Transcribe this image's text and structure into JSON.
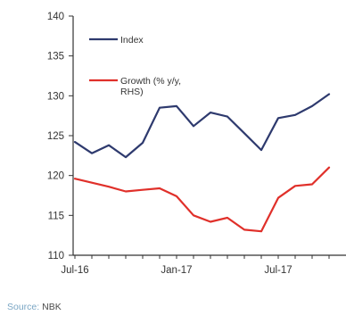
{
  "chart_data": {
    "type": "line",
    "title": "",
    "xlabel": "",
    "ylabel": "",
    "ylim": [
      110,
      140
    ],
    "y_ticks": [
      110,
      115,
      120,
      125,
      130,
      135,
      140
    ],
    "x_tick_labels": [
      "Jul-16",
      "Jan-17",
      "Jul-17"
    ],
    "x": [
      "Jul-16",
      "Aug-16",
      "Sep-16",
      "Oct-16",
      "Nov-16",
      "Dec-16",
      "Jan-17",
      "Feb-17",
      "Mar-17",
      "Apr-17",
      "May-17",
      "Jun-17",
      "Jul-17",
      "Aug-17",
      "Sep-17",
      "Oct-17"
    ],
    "grid": false,
    "legend_position": "top-left",
    "series": [
      {
        "name": "Index",
        "color": "#2e3a6e",
        "values": [
          124.2,
          122.8,
          123.8,
          122.3,
          124.1,
          128.5,
          128.7,
          126.2,
          127.9,
          127.4,
          125.3,
          123.2,
          127.2,
          127.6,
          128.7,
          130.2
        ]
      },
      {
        "name": "Growth (% y/y, RHS)",
        "color": "#e0302a",
        "values": [
          119.6,
          119.1,
          118.6,
          118.0,
          118.2,
          118.4,
          117.4,
          115.0,
          114.2,
          114.7,
          113.2,
          113.0,
          117.2,
          118.7,
          118.9,
          121.0
        ]
      }
    ],
    "legend": {
      "index_label": "Index",
      "growth_label_line1": "Growth (% y/y,",
      "growth_label_line2": "RHS)"
    }
  },
  "source": {
    "prefix": "Source:",
    "value": "NBK"
  },
  "colors": {
    "index_line": "#2e3a6e",
    "growth_line": "#e0302a",
    "axis": "#333333",
    "source_text": "#7aa6c4"
  }
}
